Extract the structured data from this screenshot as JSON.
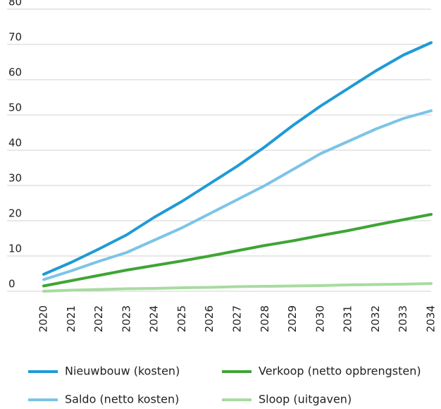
{
  "chart_data": {
    "type": "line",
    "categories": [
      "2020",
      "2021",
      "2022",
      "2023",
      "2024",
      "2025",
      "2026",
      "2027",
      "2028",
      "2029",
      "2030",
      "2031",
      "2032",
      "2033",
      "2034"
    ],
    "series": [
      {
        "name": "Nieuwbouw (kosten)",
        "color": "#1f9ad6",
        "values": [
          4.8,
          8.2,
          12,
          16,
          21,
          25.5,
          30.5,
          35.5,
          41,
          47,
          52.5,
          57.5,
          62.5,
          67,
          70.5
        ]
      },
      {
        "name": "Verkoop (netto opbrengsten)",
        "color": "#3fa535",
        "values": [
          1.5,
          3,
          4.5,
          6,
          7.3,
          8.6,
          10,
          11.5,
          13,
          14.3,
          15.8,
          17.2,
          18.8,
          20.3,
          21.8
        ]
      },
      {
        "name": "Saldo (netto kosten)",
        "color": "#7cc4e8",
        "values": [
          3.3,
          5.8,
          8.5,
          11,
          14.5,
          18,
          22,
          26,
          30,
          34.5,
          39,
          42.5,
          46,
          49,
          51.2
        ]
      },
      {
        "name": "Sloop (uitgaven)",
        "color": "#a8dba0",
        "values": [
          0,
          0.3,
          0.5,
          0.7,
          0.8,
          1,
          1.1,
          1.3,
          1.4,
          1.5,
          1.6,
          1.8,
          1.9,
          2,
          2.2
        ]
      }
    ],
    "ylim": [
      0,
      80
    ],
    "yticks": [
      0,
      10,
      20,
      30,
      40,
      50,
      60,
      70,
      80
    ],
    "grid": true
  }
}
